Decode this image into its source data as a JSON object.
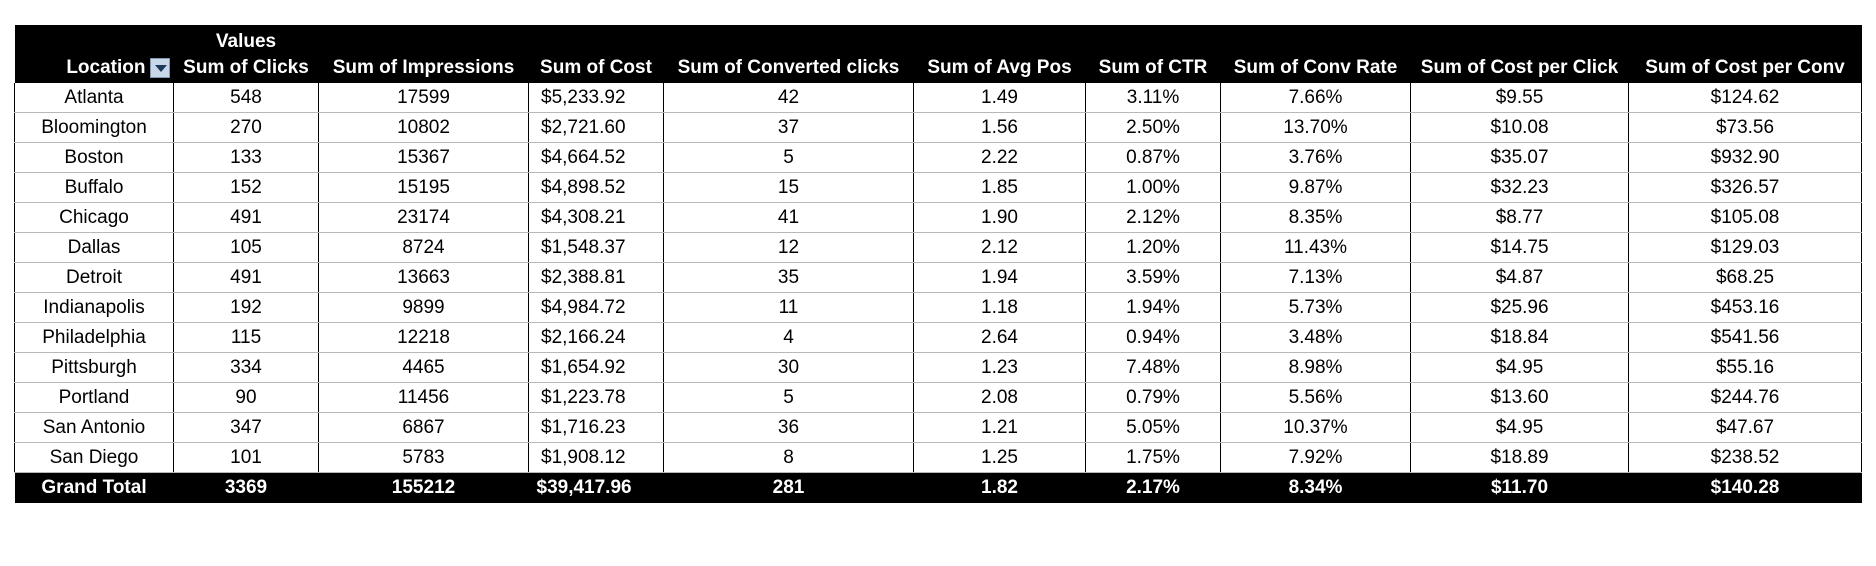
{
  "pivot": {
    "values_label": "Values",
    "location_header": "Location",
    "columns": [
      "Sum of Clicks",
      "Sum of Impressions",
      "Sum of Cost",
      "Sum of Converted clicks",
      "Sum of Avg Pos",
      "Sum of CTR",
      "Sum of Conv Rate",
      "Sum of Cost per Click",
      "Sum of Cost per Conv"
    ],
    "rows": [
      [
        "Atlanta",
        "548",
        "17599",
        "$5,233.92",
        "42",
        "1.49",
        "3.11%",
        "7.66%",
        "$9.55",
        "$124.62"
      ],
      [
        "Bloomington",
        "270",
        "10802",
        "$2,721.60",
        "37",
        "1.56",
        "2.50%",
        "13.70%",
        "$10.08",
        "$73.56"
      ],
      [
        "Boston",
        "133",
        "15367",
        "$4,664.52",
        "5",
        "2.22",
        "0.87%",
        "3.76%",
        "$35.07",
        "$932.90"
      ],
      [
        "Buffalo",
        "152",
        "15195",
        "$4,898.52",
        "15",
        "1.85",
        "1.00%",
        "9.87%",
        "$32.23",
        "$326.57"
      ],
      [
        "Chicago",
        "491",
        "23174",
        "$4,308.21",
        "41",
        "1.90",
        "2.12%",
        "8.35%",
        "$8.77",
        "$105.08"
      ],
      [
        "Dallas",
        "105",
        "8724",
        "$1,548.37",
        "12",
        "2.12",
        "1.20%",
        "11.43%",
        "$14.75",
        "$129.03"
      ],
      [
        "Detroit",
        "491",
        "13663",
        "$2,388.81",
        "35",
        "1.94",
        "3.59%",
        "7.13%",
        "$4.87",
        "$68.25"
      ],
      [
        "Indianapolis",
        "192",
        "9899",
        "$4,984.72",
        "11",
        "1.18",
        "1.94%",
        "5.73%",
        "$25.96",
        "$453.16"
      ],
      [
        "Philadelphia",
        "115",
        "12218",
        "$2,166.24",
        "4",
        "2.64",
        "0.94%",
        "3.48%",
        "$18.84",
        "$541.56"
      ],
      [
        "Pittsburgh",
        "334",
        "4465",
        "$1,654.92",
        "30",
        "1.23",
        "7.48%",
        "8.98%",
        "$4.95",
        "$55.16"
      ],
      [
        "Portland",
        "90",
        "11456",
        "$1,223.78",
        "5",
        "2.08",
        "0.79%",
        "5.56%",
        "$13.60",
        "$244.76"
      ],
      [
        "San Antonio",
        "347",
        "6867",
        "$1,716.23",
        "36",
        "1.21",
        "5.05%",
        "10.37%",
        "$4.95",
        "$47.67"
      ],
      [
        "San Diego",
        "101",
        "5783",
        "$1,908.12",
        "8",
        "1.25",
        "1.75%",
        "7.92%",
        "$18.89",
        "$238.52"
      ]
    ],
    "grand_total": [
      "Grand Total",
      "3369",
      "155212",
      "$39,417.96",
      "281",
      "1.82",
      "2.17%",
      "8.34%",
      "$11.70",
      "$140.28"
    ],
    "filter_icon": "dropdown-arrow-icon",
    "colors": {
      "header_bg": "#000000",
      "header_fg": "#ffffff",
      "filter_btn_bg": "#c9d7e8"
    }
  }
}
